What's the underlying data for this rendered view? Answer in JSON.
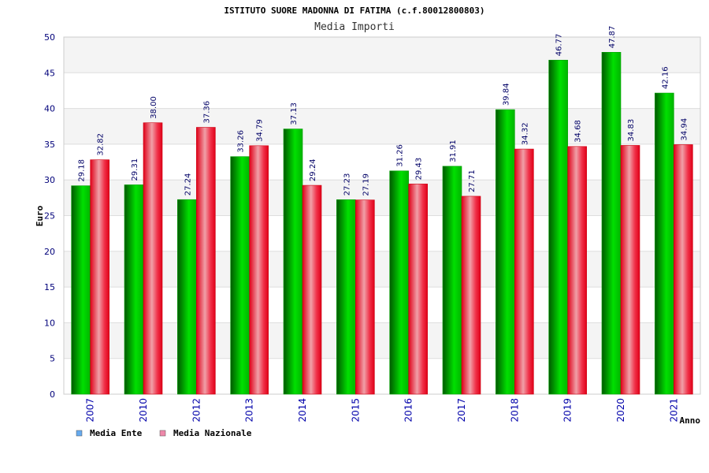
{
  "chart_data": {
    "type": "bar",
    "title": "ISTITUTO SUORE MADONNA DI FATIMA (c.f.80012800803)",
    "subtitle": "Media Importi",
    "xlabel": "Anno",
    "ylabel": "Euro",
    "ylim": [
      0,
      50
    ],
    "yticks": [
      "0",
      "5",
      "10",
      "15",
      "20",
      "25",
      "30",
      "35",
      "40",
      "45",
      "50"
    ],
    "categories": [
      "2007",
      "2010",
      "2012",
      "2013",
      "2014",
      "2015",
      "2016",
      "2017",
      "2018",
      "2019",
      "2020",
      "2021"
    ],
    "series": [
      {
        "name": "Media Ente",
        "color": "#00c000",
        "values": [
          29.18,
          29.31,
          27.24,
          33.26,
          37.13,
          27.23,
          31.26,
          31.91,
          39.84,
          46.77,
          47.87,
          42.16
        ],
        "labels": [
          "29.18",
          "29.31",
          "27.24",
          "33.26",
          "37.13",
          "27.23",
          "31.26",
          "31.91",
          "39.84",
          "46.77",
          "47.87",
          "42.16"
        ]
      },
      {
        "name": "Media Nazionale",
        "color": "#e8001a",
        "values": [
          32.82,
          38.0,
          37.36,
          34.79,
          29.24,
          27.19,
          29.43,
          27.71,
          34.32,
          34.68,
          34.83,
          34.94
        ],
        "labels": [
          "32.82",
          "38.00",
          "37.36",
          "34.79",
          "29.24",
          "27.19",
          "29.43",
          "27.71",
          "34.32",
          "34.68",
          "34.83",
          "34.94"
        ]
      }
    ],
    "legend": {
      "placement": "bottom-left",
      "items": [
        {
          "label": "Media Ente",
          "color": "#66aaee"
        },
        {
          "label": "Media Nazionale",
          "color": "#ee88aa"
        }
      ]
    },
    "grid": true
  }
}
